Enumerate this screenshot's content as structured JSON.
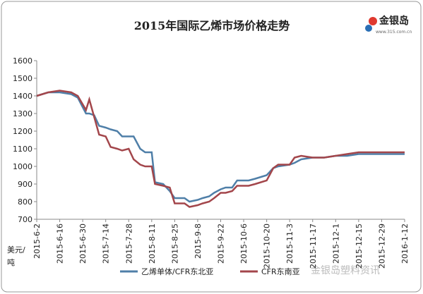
{
  "chart_data": {
    "type": "line",
    "title": "2015年国际乙烯市场价格走势",
    "logo_text": "金银岛",
    "logo_url": "www.315.com.cn",
    "watermark": "金银岛塑料资讯",
    "y_label_lines": [
      "美元/",
      "吨"
    ],
    "x": [
      "2015-6-2",
      "2015-6-9",
      "2015-6-16",
      "2015-6-23",
      "2015-6-27",
      "2015-7-2",
      "2015-7-4",
      "2015-7-7",
      "2015-7-10",
      "2015-7-14",
      "2015-7-17",
      "2015-7-21",
      "2015-7-24",
      "2015-7-28",
      "2015-7-31",
      "2015-8-4",
      "2015-8-7",
      "2015-8-11",
      "2015-8-13",
      "2015-8-18",
      "2015-8-22",
      "2015-8-25",
      "2015-8-31",
      "2015-9-3",
      "2015-9-8",
      "2015-9-11",
      "2015-9-15",
      "2015-9-18",
      "2015-9-22",
      "2015-9-25",
      "2015-9-29",
      "2015-10-2",
      "2015-10-9",
      "2015-10-13",
      "2015-10-20",
      "2015-10-24",
      "2015-10-27",
      "2015-11-3",
      "2015-11-6",
      "2015-11-10",
      "2015-11-17",
      "2015-11-24",
      "2015-12-1",
      "2015-12-8",
      "2015-12-15",
      "2015-12-22",
      "2015-12-29",
      "2016-1-5",
      "2016-1-12"
    ],
    "series": [
      {
        "name": "乙烯单体/CFR东北亚",
        "color": "#4f7fa8",
        "values": [
          1400,
          1420,
          1420,
          1410,
          1390,
          1300,
          1300,
          1290,
          1230,
          1220,
          1210,
          1200,
          1170,
          1170,
          1170,
          1100,
          1080,
          1080,
          910,
          900,
          860,
          820,
          820,
          800,
          810,
          820,
          830,
          850,
          870,
          880,
          880,
          920,
          920,
          930,
          950,
          990,
          1000,
          1010,
          1020,
          1040,
          1050,
          1050,
          1060,
          1060,
          1070,
          1070,
          1070,
          1070,
          1070
        ]
      },
      {
        "name": "CFR东南亚",
        "color": "#a3464b",
        "values": [
          1400,
          1420,
          1430,
          1420,
          1400,
          1320,
          1380,
          1280,
          1180,
          1170,
          1110,
          1100,
          1090,
          1100,
          1040,
          1010,
          1000,
          1000,
          900,
          890,
          880,
          790,
          790,
          770,
          780,
          790,
          800,
          820,
          850,
          850,
          860,
          890,
          890,
          900,
          920,
          990,
          1010,
          1010,
          1050,
          1060,
          1050,
          1050,
          1060,
          1070,
          1080,
          1080,
          1080,
          1080,
          1080
        ]
      }
    ],
    "xlim": [
      "2015-6-2",
      "2016-1-12"
    ],
    "xticks": [
      "2015-6-2",
      "2015-6-16",
      "2015-6-30",
      "2015-7-14",
      "2015-7-28",
      "2015-8-11",
      "2015-8-25",
      "2015-9-8",
      "2015-9-22",
      "2015-10-6",
      "2015-10-20",
      "2015-11-3",
      "2015-11-17",
      "2015-12-1",
      "2015-12-15",
      "2015-12-29",
      "2016-1-12"
    ],
    "ylim": [
      700,
      1600
    ],
    "yticks": [
      700,
      800,
      900,
      1000,
      1100,
      1200,
      1300,
      1400,
      1500,
      1600
    ]
  }
}
